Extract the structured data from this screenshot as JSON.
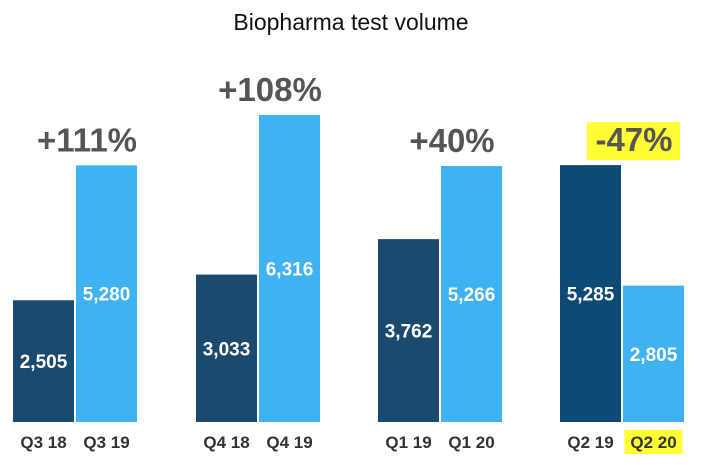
{
  "chart_data": {
    "type": "bar",
    "title": "Biopharma test volume",
    "groups": [
      {
        "labels": [
          "Q3 18",
          "Q3 19"
        ],
        "values": [
          2505,
          5280
        ],
        "value_labels": [
          "2,505",
          "5,280"
        ],
        "change": "+111%",
        "highlighted": false
      },
      {
        "labels": [
          "Q4 18",
          "Q4 19"
        ],
        "values": [
          3033,
          6316
        ],
        "value_labels": [
          "3,033",
          "6,316"
        ],
        "change": "+108%",
        "highlighted": false
      },
      {
        "labels": [
          "Q1 19",
          "Q1 20"
        ],
        "values": [
          3762,
          5266
        ],
        "value_labels": [
          "3,762",
          "5,266"
        ],
        "change": "+40%",
        "highlighted": false
      },
      {
        "labels": [
          "Q2 19",
          "Q2 20"
        ],
        "values": [
          5285,
          2805
        ],
        "value_labels": [
          "5,285",
          "2,805"
        ],
        "change": "-47%",
        "highlighted": true
      }
    ],
    "colors": {
      "prior_year": "#1b4a6e",
      "prior_year_highlight": "#0d4a76",
      "current_year": "#3fb2f2",
      "highlight": "#ffff33",
      "change_text": "#555555",
      "change_text_highlight": "#444444"
    },
    "grid": false,
    "legend": "none"
  }
}
